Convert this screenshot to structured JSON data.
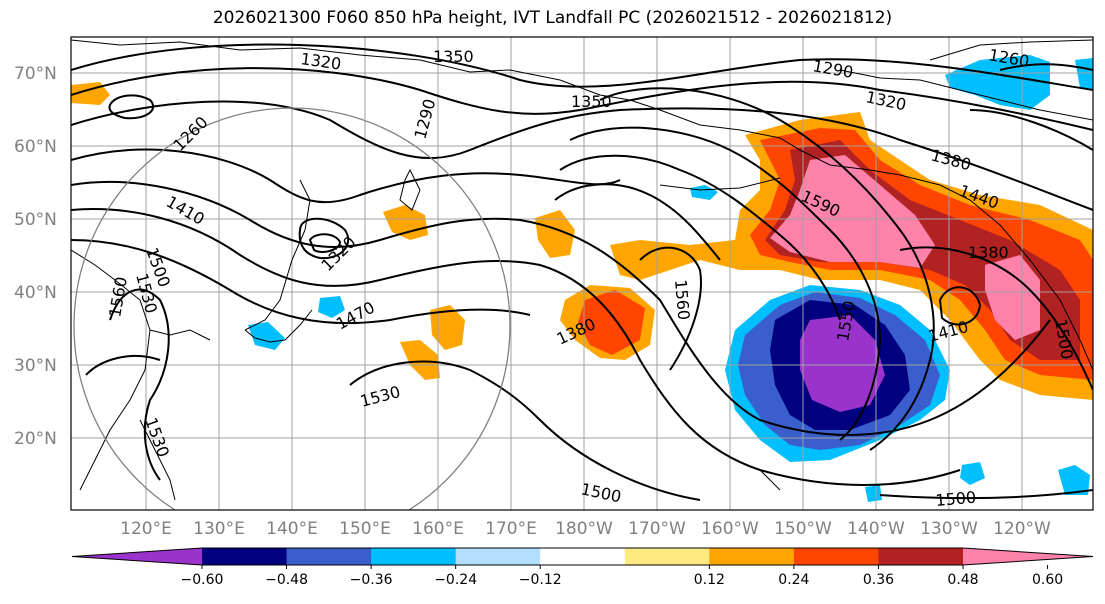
{
  "title": "2026021300 F060 850 hPa height, IVT Landfall PC (2026021512 - 2026021812)",
  "lat_labels": [
    "70°N",
    "60°N",
    "50°N",
    "40°N",
    "30°N",
    "20°N"
  ],
  "lon_labels": [
    "120°E",
    "130°E",
    "140°E",
    "150°E",
    "160°E",
    "170°E",
    "180°W",
    "170°W",
    "160°W",
    "150°W",
    "140°W",
    "130°W",
    "120°W"
  ],
  "contour_labels": [
    "1350",
    "1320",
    "1290",
    "1260",
    "1290",
    "1320",
    "1350",
    "1380",
    "1410",
    "1500",
    "1530",
    "1560",
    "1470",
    "1320",
    "1380",
    "1530",
    "1560",
    "1590",
    "1550",
    "1440",
    "1410",
    "1500",
    "1500",
    "1500",
    "1260",
    "1380",
    "1530"
  ],
  "colorbar": {
    "colors": [
      "#9933cc",
      "#000080",
      "#3a5fcd",
      "#00bfff",
      "#b2dfff",
      "#ffffff",
      "#ffea80",
      "#ffa500",
      "#ff4500",
      "#b22222",
      "#ff82ab"
    ],
    "tick_labels": [
      "−0.60",
      "−0.48",
      "−0.36",
      "−0.24",
      "−0.12",
      "0.12",
      "0.24",
      "0.36",
      "0.48",
      "0.60"
    ],
    "bounds": [
      -0.72,
      -0.6,
      -0.48,
      -0.36,
      -0.24,
      -0.12,
      0.12,
      0.24,
      0.36,
      0.48,
      0.6,
      0.72
    ]
  },
  "map": {
    "lon_range_deg_east": [
      113,
      244
    ],
    "lat_range": [
      10,
      75
    ],
    "projection": "PlateCarree",
    "gridlines": true,
    "range_circle_center": {
      "lon": 140,
      "lat": 36
    }
  }
}
